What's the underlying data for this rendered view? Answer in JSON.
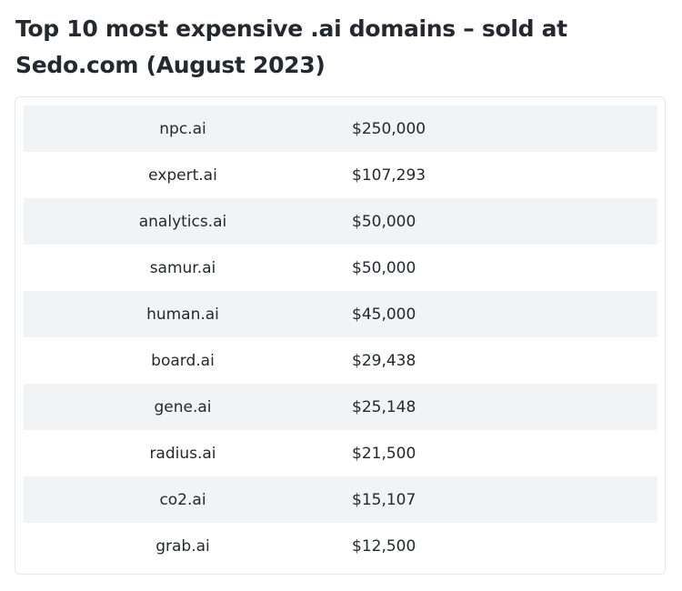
{
  "page": {
    "title": "Top 10 most expensive .ai domains – sold at Sedo.com (August 2023)"
  },
  "table": {
    "rows": [
      {
        "domain": "npc.ai",
        "price": "$250,000"
      },
      {
        "domain": "expert.ai",
        "price": "$107,293"
      },
      {
        "domain": "analytics.ai",
        "price": "$50,000"
      },
      {
        "domain": "samur.ai",
        "price": "$50,000"
      },
      {
        "domain": "human.ai",
        "price": "$45,000"
      },
      {
        "domain": "board.ai",
        "price": "$29,438"
      },
      {
        "domain": "gene.ai",
        "price": "$25,148"
      },
      {
        "domain": "radius.ai",
        "price": "$21,500"
      },
      {
        "domain": "co2.ai",
        "price": "$15,107"
      },
      {
        "domain": "grab.ai",
        "price": "$12,500"
      }
    ]
  }
}
